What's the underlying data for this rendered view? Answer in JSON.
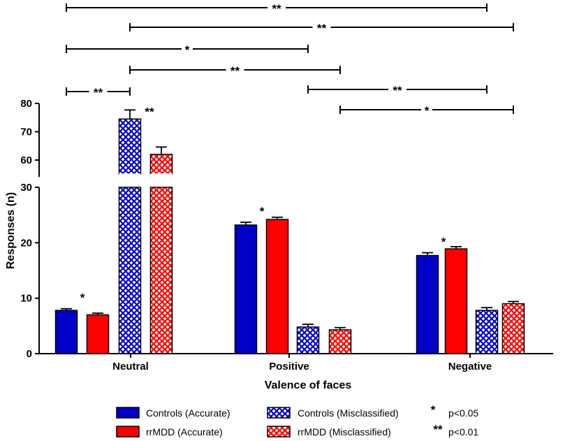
{
  "chart_data": {
    "type": "bar",
    "xlabel": "Valence of faces",
    "ylabel": "Responses (n)",
    "categories": [
      "Neutral",
      "Positive",
      "Negative"
    ],
    "axis_break": {
      "lower_range": [
        0,
        30
      ],
      "upper_range": [
        55,
        80
      ]
    },
    "yticks_lower": [
      0,
      10,
      20,
      30
    ],
    "yticks_upper": [
      60,
      70,
      80
    ],
    "series": [
      {
        "name": "Controls (Accurate)",
        "pattern": "solid",
        "color": "#0000c8",
        "values": [
          7.8,
          23.2,
          17.7
        ],
        "errors": [
          0.3,
          0.5,
          0.5
        ]
      },
      {
        "name": "rrMDD (Accurate)",
        "pattern": "solid",
        "color": "#ff0000",
        "values": [
          7.0,
          24.2,
          18.9
        ],
        "errors": [
          0.3,
          0.4,
          0.4
        ]
      },
      {
        "name": "Controls (Misclassified)",
        "pattern": "crosshatch",
        "color": "#0000c8",
        "values": [
          74.5,
          4.8,
          7.8
        ],
        "errors": [
          3.2,
          0.5,
          0.5
        ]
      },
      {
        "name": "rrMDD (Misclassified)",
        "pattern": "crosshatch",
        "color": "#ff0000",
        "values": [
          62.0,
          4.3,
          9.0
        ],
        "errors": [
          2.6,
          0.4,
          0.4
        ]
      }
    ],
    "bar_annotations": [
      {
        "category": 0,
        "series": 0,
        "text": "*"
      },
      {
        "category": 0,
        "series": 2,
        "text": "**"
      },
      {
        "category": 1,
        "series": 0,
        "text": "*"
      },
      {
        "category": 2,
        "series": 0,
        "text": "*"
      }
    ],
    "significance_brackets": [
      {
        "from": [
          0,
          0
        ],
        "to": [
          2,
          2
        ],
        "text": "**"
      },
      {
        "from": [
          0,
          2
        ],
        "to": [
          2,
          3
        ],
        "text": "**"
      },
      {
        "from": [
          0,
          0
        ],
        "to": [
          1,
          2
        ],
        "text": "*"
      },
      {
        "from": [
          0,
          2
        ],
        "to": [
          1,
          3
        ],
        "text": "**"
      },
      {
        "from": [
          0,
          0
        ],
        "to": [
          0,
          2
        ],
        "text": "**"
      },
      {
        "from": [
          1,
          2
        ],
        "to": [
          2,
          2
        ],
        "text": "**"
      },
      {
        "from": [
          1,
          3
        ],
        "to": [
          2,
          3
        ],
        "text": "*"
      }
    ],
    "legend": {
      "items": [
        "Controls (Accurate)",
        "rrMDD (Accurate)",
        "Controls (Misclassified)",
        "rrMDD  (Misclassified)"
      ],
      "notes": [
        {
          "symbol": "*",
          "text": "p<0.05"
        },
        {
          "symbol": "**",
          "text": "p<0.01"
        }
      ]
    }
  }
}
